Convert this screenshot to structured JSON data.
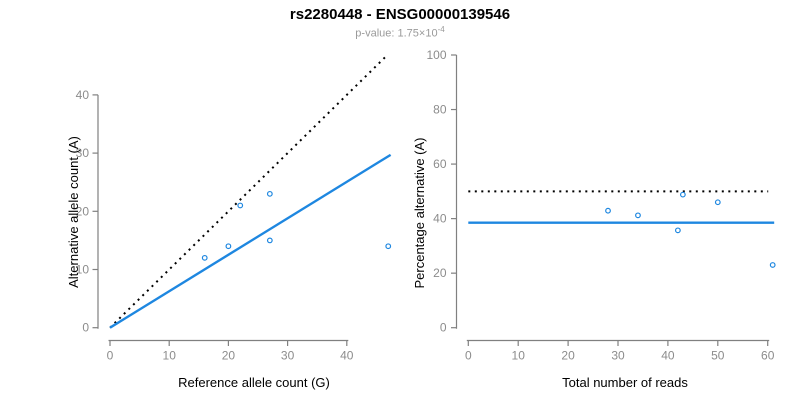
{
  "header": {
    "title": "rs2280448 - ENSG00000139546",
    "subtitle_prefix": "p-value: 1.75×10",
    "subtitle_exponent": "-4"
  },
  "colors": {
    "accent_blue": "#1E87E0",
    "dotted_black": "#000000",
    "axis_gray": "#808080",
    "tick_label_gray": "#8C8C8C",
    "axis_title_black": "#000000",
    "subtitle_gray": "#9A9A9A",
    "background": "#FFFFFF"
  },
  "chart_data": [
    {
      "type": "scatter",
      "xlabel": "Reference allele count (G)",
      "ylabel": "Alternative allele count (A)",
      "xticks": [
        0,
        10,
        20,
        30,
        40
      ],
      "yticks": [
        0,
        10,
        20,
        30,
        40
      ],
      "xlim": [
        0,
        47
      ],
      "ylim": [
        0,
        47
      ],
      "grid": false,
      "legend": false,
      "marker": "open-circle",
      "marker_color": "#1E87E0",
      "points": [
        [
          16,
          12
        ],
        [
          20,
          14
        ],
        [
          22,
          21
        ],
        [
          27,
          15
        ],
        [
          27,
          23
        ],
        [
          47,
          14
        ]
      ],
      "lines": [
        {
          "name": "identity-line",
          "style": "dotted",
          "color": "#000000",
          "x1": 0,
          "y1": 0,
          "x2": 46.8,
          "y2": 46.8
        },
        {
          "name": "allelic-ratio-fit-line",
          "style": "solid",
          "color": "#1E87E0",
          "x1": 0,
          "y1": 0,
          "x2": 47.4,
          "y2": 29.7
        }
      ]
    },
    {
      "type": "scatter",
      "xlabel": "Total number of reads",
      "ylabel": "Percentage alternative (A)",
      "xticks": [
        0,
        10,
        20,
        30,
        40,
        50,
        60
      ],
      "yticks": [
        0,
        20,
        40,
        60,
        80,
        100
      ],
      "xlim": [
        0,
        61
      ],
      "ylim": [
        0,
        100
      ],
      "grid": false,
      "legend": false,
      "marker": "open-circle",
      "marker_color": "#1E87E0",
      "points": [
        [
          28,
          42.9
        ],
        [
          34,
          41.2
        ],
        [
          42,
          35.7
        ],
        [
          43,
          48.8
        ],
        [
          50,
          46.0
        ],
        [
          61,
          23.0
        ]
      ],
      "lines": [
        {
          "name": "expected-50-percent-line",
          "style": "dotted",
          "color": "#000000",
          "x1": 0,
          "y1": 50,
          "x2": 60.1,
          "y2": 50
        },
        {
          "name": "observed-mean-percentage-line",
          "style": "solid",
          "color": "#1E87E0",
          "x1": 0,
          "y1": 38.5,
          "x2": 61.3,
          "y2": 38.5
        }
      ]
    }
  ]
}
